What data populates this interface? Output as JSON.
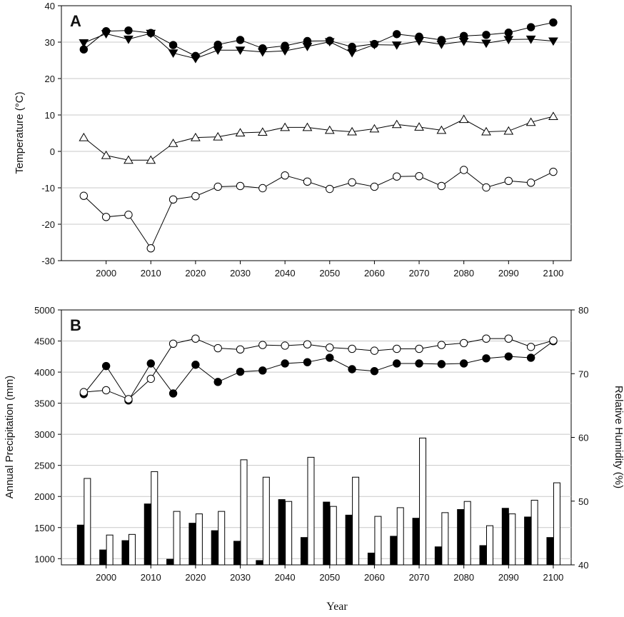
{
  "chart_data": [
    {
      "type": "line",
      "panel_label": "A",
      "ylabel": "Temperature (°C)",
      "ylim": [
        -30,
        40
      ],
      "yticks": [
        -30,
        -20,
        -10,
        0,
        10,
        20,
        30,
        40
      ],
      "xlim": [
        1990,
        2104
      ],
      "xticks": [
        2000,
        2010,
        2020,
        2030,
        2040,
        2050,
        2060,
        2070,
        2080,
        2090,
        2100
      ],
      "grid": "horizontal",
      "x": [
        1995,
        2000,
        2005,
        2010,
        2015,
        2020,
        2025,
        2030,
        2035,
        2040,
        2045,
        2050,
        2055,
        2060,
        2065,
        2070,
        2075,
        2080,
        2085,
        2090,
        2095,
        2100
      ],
      "series": [
        {
          "marker": "filled-circle",
          "values": [
            28,
            33,
            33.2,
            32.5,
            29.2,
            26.2,
            29.3,
            30.6,
            28.3,
            29,
            30.3,
            30.4,
            28.7,
            29.5,
            32.2,
            31.5,
            30.6,
            31.7,
            32,
            32.6,
            34.1,
            35.4
          ]
        },
        {
          "marker": "filled-triangle-down",
          "values": [
            29.8,
            32.3,
            30.8,
            32.4,
            27,
            25.5,
            27.8,
            27.8,
            27.3,
            27.6,
            28.8,
            30.1,
            27.1,
            29.3,
            29.2,
            30.3,
            29.4,
            30.2,
            29.7,
            30.7,
            30.8,
            30.3
          ]
        },
        {
          "marker": "open-triangle-up",
          "values": [
            3.8,
            -1.1,
            -2.4,
            -2.4,
            2.2,
            3.8,
            4,
            5.1,
            5.3,
            6.6,
            6.6,
            5.8,
            5.4,
            6.2,
            7.4,
            6.7,
            5.8,
            8.8,
            5.4,
            5.6,
            8,
            9.6
          ]
        },
        {
          "marker": "open-circle",
          "values": [
            -12.2,
            -18,
            -17.4,
            -26.6,
            -13.2,
            -12.3,
            -9.7,
            -9.5,
            -10.1,
            -6.6,
            -8.3,
            -10.3,
            -8.5,
            -9.7,
            -6.9,
            -6.8,
            -9.5,
            -5.1,
            -9.9,
            -8.1,
            -8.6,
            -5.6
          ]
        }
      ]
    },
    {
      "type": "bar-line-combo",
      "panel_label": "B",
      "xlabel": "Year",
      "ylabel_left": "Annual Precipitation (mm)",
      "ylabel_right": "Relative Humidity (%)",
      "ylim_left": [
        900,
        5000
      ],
      "yticks_left": [
        1000,
        1500,
        2000,
        2500,
        3000,
        3500,
        4000,
        4500,
        5000
      ],
      "ylim_right": [
        40,
        80
      ],
      "yticks_right": [
        40,
        50,
        60,
        70,
        80
      ],
      "xlim": [
        1990,
        2104
      ],
      "xticks": [
        2000,
        2010,
        2020,
        2030,
        2040,
        2050,
        2060,
        2070,
        2080,
        2090,
        2100
      ],
      "grid": "horizontal",
      "x": [
        1995,
        2000,
        2005,
        2010,
        2015,
        2020,
        2025,
        2030,
        2035,
        2040,
        2045,
        2050,
        2055,
        2060,
        2065,
        2070,
        2075,
        2080,
        2085,
        2090,
        2095,
        2100
      ],
      "bar_series": [
        {
          "fill": "black",
          "axis": "left",
          "values": [
            1540,
            1140,
            1290,
            1880,
            990,
            1570,
            1450,
            1280,
            970,
            1950,
            1340,
            1910,
            1700,
            1090,
            1360,
            1650,
            1190,
            1790,
            1210,
            1810,
            1670,
            1340
          ]
        },
        {
          "fill": "white",
          "axis": "left",
          "values": [
            2290,
            1380,
            1390,
            2400,
            1760,
            1720,
            1760,
            2590,
            2310,
            1920,
            2630,
            1840,
            2310,
            1680,
            1820,
            2940,
            1740,
            1920,
            1530,
            1720,
            1940,
            2220
          ]
        }
      ],
      "line_series": [
        {
          "marker": "filled-circle",
          "axis": "right",
          "values": [
            66.8,
            71.2,
            65.8,
            71.6,
            66.9,
            71.4,
            68.7,
            70.3,
            70.5,
            71.6,
            71.8,
            72.5,
            70.7,
            70.4,
            71.6,
            71.6,
            71.5,
            71.6,
            72.4,
            72.7,
            72.5,
            75.1
          ]
        },
        {
          "marker": "open-circle",
          "axis": "right",
          "values": [
            67.1,
            67.4,
            66,
            69.2,
            74.7,
            75.5,
            74,
            73.8,
            74.5,
            74.4,
            74.6,
            74.1,
            73.9,
            73.6,
            73.9,
            73.9,
            74.5,
            74.8,
            75.5,
            75.5,
            74.2,
            75.2
          ]
        }
      ]
    }
  ]
}
